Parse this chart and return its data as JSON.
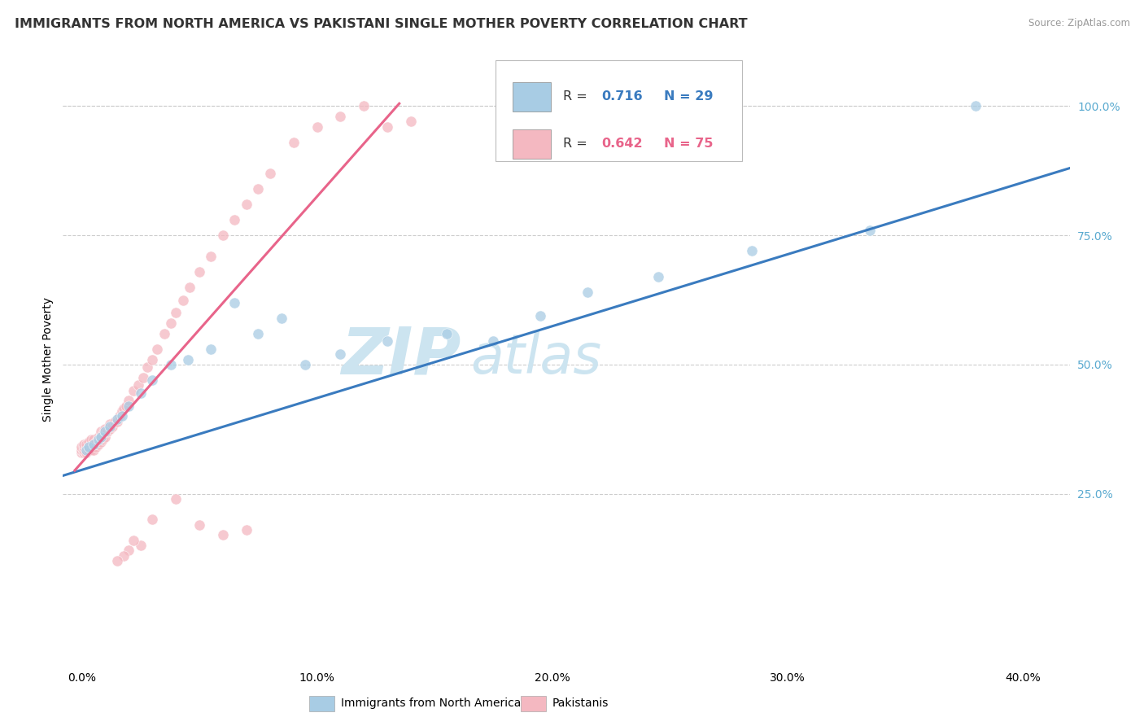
{
  "title": "IMMIGRANTS FROM NORTH AMERICA VS PAKISTANI SINGLE MOTHER POVERTY CORRELATION CHART",
  "source": "Source: ZipAtlas.com",
  "ylabel": "Single Mother Poverty",
  "x_tick_labels": [
    "0.0%",
    "10.0%",
    "20.0%",
    "30.0%",
    "40.0%"
  ],
  "x_tick_vals": [
    0.0,
    0.1,
    0.2,
    0.3,
    0.4
  ],
  "y_tick_labels": [
    "25.0%",
    "50.0%",
    "75.0%",
    "100.0%"
  ],
  "y_tick_vals": [
    0.25,
    0.5,
    0.75,
    1.0
  ],
  "xlim": [
    -0.008,
    0.42
  ],
  "ylim": [
    -0.08,
    1.1
  ],
  "blue_color": "#a8cce4",
  "blue_line_color": "#3a7bbf",
  "pink_color": "#f4b8c1",
  "pink_line_color": "#e8648a",
  "legend_label_blue": "Immigrants from North America",
  "legend_label_pink": "Pakistanis",
  "background_color": "#ffffff",
  "grid_color": "#cccccc",
  "title_fontsize": 11.5,
  "tick_fontsize": 10,
  "watermark_zip": "ZIP",
  "watermark_atlas": "atlas",
  "watermark_color": "#cce4f0",
  "right_tick_color": "#5aaad0",
  "blue_scatter_x": [
    0.002,
    0.003,
    0.005,
    0.007,
    0.008,
    0.01,
    0.012,
    0.015,
    0.017,
    0.02,
    0.025,
    0.03,
    0.038,
    0.045,
    0.055,
    0.065,
    0.075,
    0.085,
    0.095,
    0.11,
    0.13,
    0.155,
    0.175,
    0.195,
    0.215,
    0.245,
    0.285,
    0.335,
    0.38
  ],
  "blue_scatter_y": [
    0.335,
    0.34,
    0.345,
    0.355,
    0.36,
    0.37,
    0.38,
    0.395,
    0.4,
    0.42,
    0.445,
    0.47,
    0.5,
    0.51,
    0.53,
    0.62,
    0.56,
    0.59,
    0.5,
    0.52,
    0.545,
    0.56,
    0.545,
    0.595,
    0.64,
    0.67,
    0.72,
    0.76,
    1.0
  ],
  "pink_scatter_x": [
    0.0,
    0.0,
    0.0,
    0.001,
    0.001,
    0.001,
    0.001,
    0.002,
    0.002,
    0.002,
    0.003,
    0.003,
    0.003,
    0.004,
    0.004,
    0.004,
    0.005,
    0.005,
    0.005,
    0.006,
    0.006,
    0.007,
    0.007,
    0.008,
    0.008,
    0.008,
    0.009,
    0.009,
    0.01,
    0.01,
    0.011,
    0.012,
    0.012,
    0.013,
    0.014,
    0.015,
    0.016,
    0.017,
    0.018,
    0.019,
    0.02,
    0.022,
    0.024,
    0.026,
    0.028,
    0.03,
    0.032,
    0.035,
    0.038,
    0.04,
    0.043,
    0.046,
    0.05,
    0.055,
    0.06,
    0.065,
    0.07,
    0.075,
    0.08,
    0.09,
    0.1,
    0.11,
    0.12,
    0.13,
    0.14,
    0.025,
    0.02,
    0.018,
    0.015,
    0.022,
    0.03,
    0.04,
    0.05,
    0.06,
    0.07
  ],
  "pink_scatter_y": [
    0.33,
    0.335,
    0.34,
    0.33,
    0.335,
    0.34,
    0.345,
    0.33,
    0.34,
    0.345,
    0.335,
    0.34,
    0.35,
    0.335,
    0.345,
    0.355,
    0.335,
    0.345,
    0.355,
    0.34,
    0.35,
    0.345,
    0.36,
    0.35,
    0.36,
    0.37,
    0.355,
    0.365,
    0.36,
    0.375,
    0.37,
    0.375,
    0.385,
    0.38,
    0.39,
    0.39,
    0.4,
    0.41,
    0.415,
    0.42,
    0.43,
    0.45,
    0.46,
    0.475,
    0.495,
    0.51,
    0.53,
    0.56,
    0.58,
    0.6,
    0.625,
    0.65,
    0.68,
    0.71,
    0.75,
    0.78,
    0.81,
    0.84,
    0.87,
    0.93,
    0.96,
    0.98,
    1.0,
    0.96,
    0.97,
    0.15,
    0.14,
    0.13,
    0.12,
    0.16,
    0.2,
    0.24,
    0.19,
    0.17,
    0.18
  ],
  "blue_line_x0": -0.008,
  "blue_line_x1": 0.42,
  "blue_line_y0": 0.285,
  "blue_line_y1": 0.88,
  "pink_line_x0": -0.003,
  "pink_line_x1": 0.135,
  "pink_line_y0": 0.295,
  "pink_line_y1": 1.005
}
